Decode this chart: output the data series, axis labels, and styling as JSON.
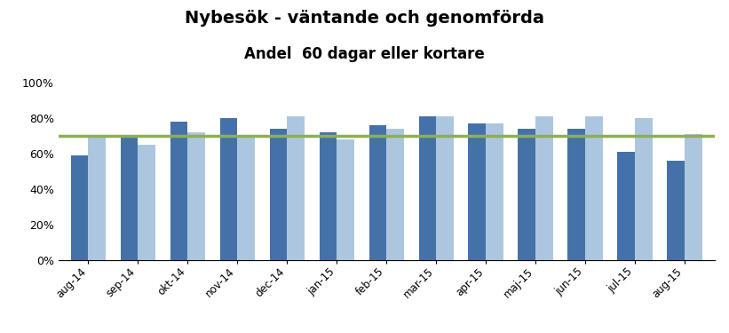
{
  "title": "Nybesök - väntande och genomförda",
  "subtitle": "Andel  60 dagar eller kortare",
  "categories": [
    "aug-14",
    "sep-14",
    "okt-14",
    "nov-14",
    "dec-14",
    "jan-15",
    "feb-15",
    "mar-15",
    "apr-15",
    "maj-15",
    "jun-15",
    "jul-15",
    "aug-15"
  ],
  "vantande": [
    0.59,
    0.69,
    0.78,
    0.8,
    0.74,
    0.72,
    0.76,
    0.81,
    0.77,
    0.74,
    0.74,
    0.61,
    0.56
  ],
  "genomforda": [
    0.69,
    0.65,
    0.72,
    0.7,
    0.81,
    0.68,
    0.74,
    0.81,
    0.77,
    0.81,
    0.81,
    0.8,
    0.71
  ],
  "mal_nationellt": 0.7,
  "color_vantande": "#4472a8",
  "color_genomforda": "#adc6e0",
  "color_mal": "#8db050",
  "ylim": [
    0,
    1.05
  ],
  "yticks": [
    0,
    0.2,
    0.4,
    0.6,
    0.8,
    1.0
  ],
  "ytick_labels": [
    "0%",
    "20%",
    "40%",
    "60%",
    "80%",
    "100%"
  ],
  "bar_width": 0.35,
  "background_color": "#ffffff",
  "title_fontsize": 14,
  "subtitle_fontsize": 12
}
